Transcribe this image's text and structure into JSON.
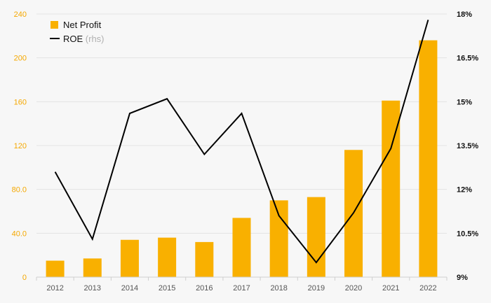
{
  "chart_data": {
    "type": "bar+line",
    "categories": [
      "2012",
      "2013",
      "2014",
      "2015",
      "2016",
      "2017",
      "2018",
      "2019",
      "2020",
      "2021",
      "2022"
    ],
    "series": [
      {
        "name": "Net Profit",
        "type": "bar",
        "axis": "left",
        "color": "#f9b000",
        "values": [
          15,
          17,
          34,
          36,
          32,
          54,
          70,
          73,
          116,
          161,
          216
        ]
      },
      {
        "name": "ROE",
        "name_suffix": "(rhs)",
        "type": "line",
        "axis": "right",
        "color": "#000000",
        "values": [
          12.6,
          10.3,
          14.6,
          15.1,
          13.2,
          14.6,
          11.1,
          9.5,
          11.2,
          13.4,
          17.8
        ]
      }
    ],
    "y_left": {
      "min": 0,
      "max": 240,
      "ticks": [
        0,
        40,
        80,
        120,
        160,
        200,
        240
      ],
      "tick_labels": [
        "0",
        "40.0",
        "80.0",
        "120",
        "160",
        "200",
        "240"
      ]
    },
    "y_right": {
      "min": 9,
      "max": 18,
      "ticks": [
        9,
        10.5,
        12,
        13.5,
        15,
        16.5,
        18
      ],
      "tick_labels": [
        "9%",
        "10.5%",
        "12%",
        "13.5%",
        "15%",
        "16.5%",
        "18%"
      ]
    },
    "grid": true,
    "legend_position": "top-left",
    "colors": {
      "bar": "#f9b000",
      "left_ticks": "#f5a800",
      "grid": "#e4e4e4"
    }
  }
}
